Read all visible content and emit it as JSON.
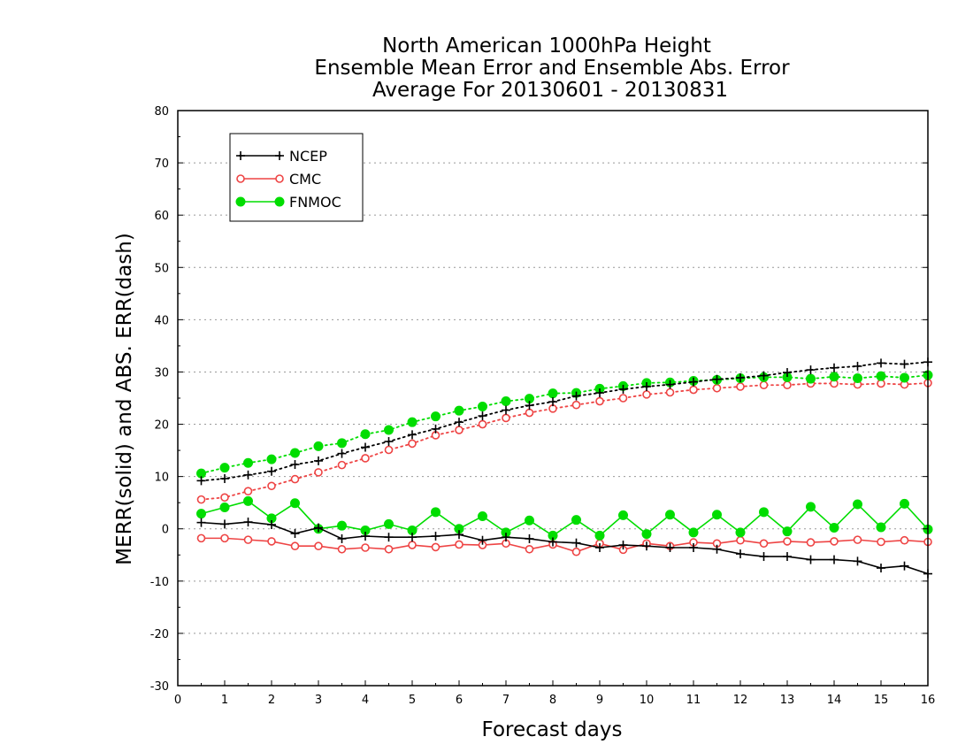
{
  "chart_data": {
    "type": "line",
    "title": [
      "North American 1000hPa Height",
      "Ensemble Mean Error and Ensemble Abs. Error",
      "Average For 20130601 - 20130831"
    ],
    "xlabel": "Forecast days",
    "ylabel": "MERR(solid) and ABS. ERR(dash)",
    "xlim": [
      0,
      16
    ],
    "ylim": [
      -30,
      80
    ],
    "x_ticks": [
      0,
      1,
      2,
      3,
      4,
      5,
      6,
      7,
      8,
      9,
      10,
      11,
      12,
      13,
      14,
      15,
      16
    ],
    "y_ticks": [
      -30,
      -20,
      -10,
      0,
      10,
      20,
      30,
      40,
      50,
      60,
      70,
      80
    ],
    "grid": "horizontal dotted",
    "legend_position": "top-left",
    "x": [
      0.5,
      1,
      1.5,
      2,
      2.5,
      3,
      3.5,
      4,
      4.5,
      5,
      5.5,
      6,
      6.5,
      7,
      7.5,
      8,
      8.5,
      9,
      9.5,
      10,
      10.5,
      11,
      11.5,
      12,
      12.5,
      13,
      13.5,
      14,
      14.5,
      15,
      15.5,
      16
    ],
    "series": [
      {
        "name": "NCEP",
        "color": "#000000",
        "marker": "plus",
        "mean_error": [
          1.2,
          0.9,
          1.3,
          0.8,
          -0.9,
          0.2,
          -1.9,
          -1.4,
          -1.6,
          -1.6,
          -1.4,
          -1.1,
          -2.2,
          -1.6,
          -1.9,
          -2.5,
          -2.7,
          -3.6,
          -3.1,
          -3.3,
          -3.6,
          -3.6,
          -3.9,
          -4.8,
          -5.3,
          -5.3,
          -5.9,
          -5.9,
          -6.2,
          -7.5,
          -7.1,
          -8.6
        ],
        "abs_error": [
          9.2,
          9.6,
          10.3,
          11.0,
          12.3,
          13.0,
          14.4,
          15.6,
          16.7,
          18.0,
          19.1,
          20.4,
          21.6,
          22.7,
          23.6,
          24.3,
          25.4,
          26.0,
          26.7,
          27.2,
          27.6,
          28.1,
          28.6,
          28.9,
          29.3,
          29.9,
          30.4,
          30.8,
          31.1,
          31.7,
          31.5,
          31.9
        ]
      },
      {
        "name": "CMC",
        "color": "#ee4444",
        "marker": "open-circle",
        "mean_error": [
          -1.8,
          -1.8,
          -2.1,
          -2.4,
          -3.3,
          -3.3,
          -3.9,
          -3.6,
          -3.9,
          -3.1,
          -3.5,
          -3.0,
          -3.1,
          -2.8,
          -3.9,
          -3.0,
          -4.4,
          -2.8,
          -4.0,
          -2.8,
          -3.3,
          -2.6,
          -2.8,
          -2.2,
          -2.8,
          -2.4,
          -2.6,
          -2.4,
          -2.1,
          -2.5,
          -2.2,
          -2.5
        ],
        "abs_error": [
          5.6,
          6.0,
          7.2,
          8.2,
          9.5,
          10.8,
          12.2,
          13.5,
          15.1,
          16.3,
          17.9,
          18.9,
          20.0,
          21.2,
          22.2,
          23.0,
          23.7,
          24.4,
          25.0,
          25.7,
          26.1,
          26.6,
          26.9,
          27.2,
          27.5,
          27.5,
          27.8,
          27.8,
          27.6,
          27.8,
          27.6,
          27.9
        ]
      },
      {
        "name": "FNMOC",
        "color": "#00dd00",
        "marker": "filled-circle",
        "mean_error": [
          2.9,
          4.1,
          5.3,
          2.0,
          4.9,
          0.0,
          0.6,
          -0.3,
          0.9,
          -0.3,
          3.2,
          0.0,
          2.4,
          -0.7,
          1.6,
          -1.3,
          1.7,
          -1.3,
          2.6,
          -1.0,
          2.7,
          -0.7,
          2.7,
          -0.7,
          3.2,
          -0.5,
          4.2,
          0.2,
          4.7,
          0.3,
          4.8,
          -0.1
        ],
        "abs_error": [
          10.6,
          11.7,
          12.6,
          13.3,
          14.5,
          15.8,
          16.4,
          18.1,
          18.9,
          20.4,
          21.5,
          22.6,
          23.4,
          24.4,
          24.9,
          25.9,
          26.0,
          26.8,
          27.3,
          27.9,
          28.0,
          28.3,
          28.5,
          28.8,
          29.0,
          29.0,
          28.7,
          29.1,
          28.8,
          29.2,
          28.9,
          29.4
        ]
      }
    ]
  }
}
